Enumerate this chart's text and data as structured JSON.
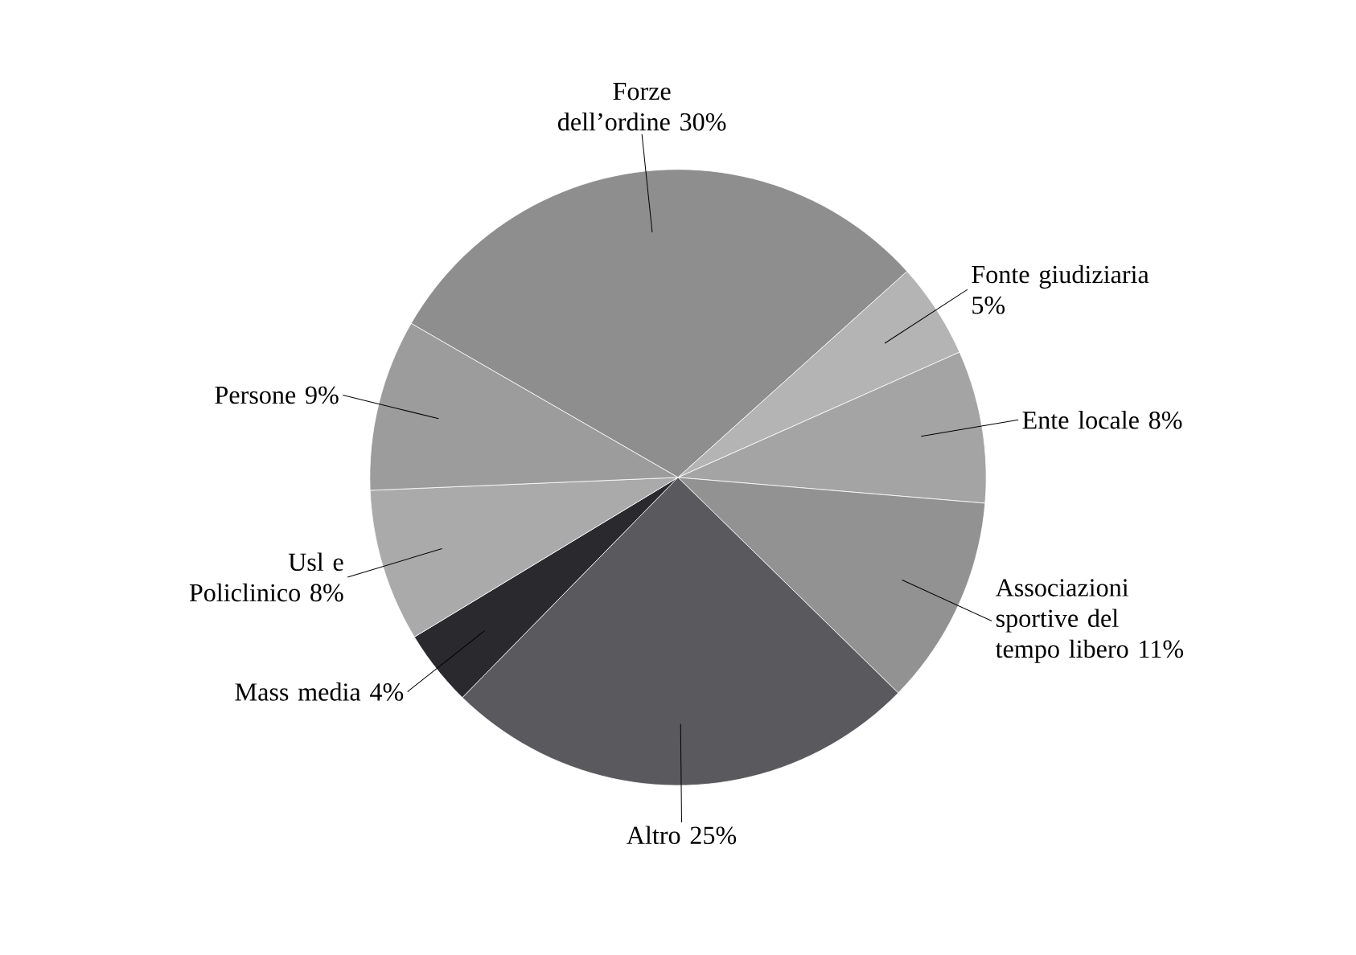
{
  "chart_data": {
    "type": "pie",
    "categories": [
      "Forze dell’ordine",
      "Fonte giudiziaria",
      "Ente locale",
      "Associazioni sportive del tempo libero",
      "Altro",
      "Mass media",
      "Usl e Policlinico",
      "Persone"
    ],
    "values": [
      30,
      5,
      8,
      11,
      25,
      4,
      8,
      9
    ],
    "value_labels": [
      "30%",
      "5%",
      "8%",
      "11%",
      "25%",
      "4%",
      "8%",
      "9%"
    ],
    "colors": [
      "#8e8e8e",
      "#b4b4b4",
      "#a4a4a4",
      "#929292",
      "#5a5a5e",
      "#2a2a2e",
      "#aaaaaa",
      "#9c9c9c"
    ]
  }
}
